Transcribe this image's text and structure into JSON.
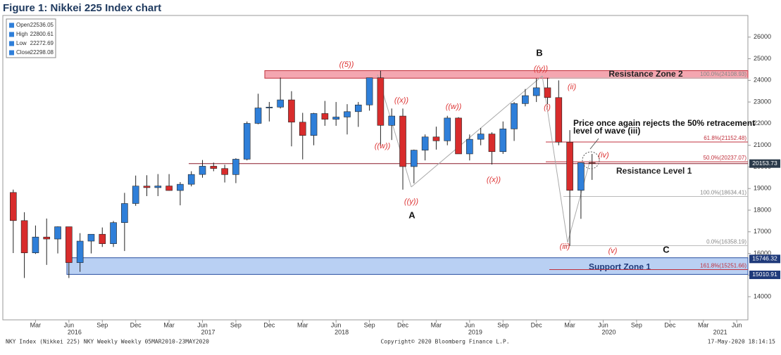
{
  "chart_data": {
    "type": "candlestick",
    "title": "Figure 1: Nikkei 225 Index chart",
    "x": [
      "2016-01",
      "2016-02",
      "2016-03",
      "2016-04",
      "2016-05",
      "2016-06",
      "2016-07",
      "2016-08",
      "2016-09",
      "2016-10",
      "2016-11",
      "2016-12",
      "2017-01",
      "2017-02",
      "2017-03",
      "2017-04",
      "2017-05",
      "2017-06",
      "2017-07",
      "2017-08",
      "2017-09",
      "2017-10",
      "2017-11",
      "2017-12",
      "2018-01",
      "2018-02",
      "2018-03",
      "2018-04",
      "2018-05",
      "2018-06",
      "2018-07",
      "2018-08",
      "2018-09",
      "2018-10",
      "2018-11",
      "2018-12",
      "2019-01",
      "2019-02",
      "2019-03",
      "2019-04",
      "2019-05",
      "2019-06",
      "2019-07",
      "2019-08",
      "2019-09",
      "2019-10",
      "2019-11",
      "2019-12",
      "2020-01",
      "2020-02",
      "2020-03",
      "2020-04",
      "2020-05"
    ],
    "open": [
      18818,
      17518,
      16026,
      16758,
      16666,
      17234,
      15575,
      16569,
      16887,
      16449,
      17425,
      18308,
      19114,
      19041,
      19119,
      18909,
      19197,
      19651,
      20033,
      19925,
      19646,
      20356,
      22012,
      22725,
      22764,
      23098,
      22068,
      21454,
      22468,
      22202,
      22305,
      22554,
      22865,
      24120,
      21920,
      22351,
      20015,
      20773,
      21385,
      21206,
      22259,
      20601,
      21276,
      21522,
      20704,
      21756,
      22927,
      23294,
      23657,
      23205,
      21143,
      18917,
      20194
    ],
    "high": [
      18951,
      17905,
      17291,
      17613,
      17251,
      17235,
      16938,
      16800,
      17200,
      17500,
      18800,
      19600,
      19615,
      19669,
      19668,
      19300,
      19800,
      20318,
      20200,
      20100,
      20400,
      22100,
      23382,
      23000,
      24129,
      23500,
      22500,
      22500,
      23050,
      23000,
      22900,
      23000,
      24120,
      24448,
      22700,
      22698,
      20800,
      21500,
      21860,
      22362,
      22300,
      21500,
      21800,
      21600,
      22100,
      23000,
      23600,
      24092,
      24115,
      24000,
      21700,
      20200,
      20600
    ],
    "low": [
      16017,
      14865,
      15977,
      15471,
      16000,
      14864,
      15150,
      16000,
      16300,
      16300,
      16111,
      18200,
      18650,
      18650,
      18900,
      18224,
      19100,
      19500,
      19800,
      19280,
      19250,
      20300,
      21972,
      22100,
      22700,
      20950,
      20347,
      21000,
      21900,
      21900,
      21500,
      21850,
      22600,
      20971,
      21243,
      18949,
      19241,
      20300,
      20800,
      21000,
      20600,
      20300,
      21000,
      20110,
      20600,
      21200,
      22800,
      23000,
      22900,
      21000,
      16358,
      17600,
      19400
    ],
    "close": [
      17518,
      16026,
      16758,
      16666,
      17234,
      15575,
      16569,
      16887,
      16449,
      17425,
      18308,
      19114,
      19041,
      19119,
      18909,
      19197,
      19651,
      20033,
      19925,
      19646,
      20356,
      22012,
      22725,
      22764,
      23098,
      22068,
      21454,
      22468,
      22202,
      22305,
      22554,
      22865,
      24120,
      21920,
      22351,
      20015,
      20773,
      21385,
      21206,
      22259,
      20601,
      21276,
      21522,
      20704,
      21756,
      22927,
      23294,
      23657,
      23205,
      21143,
      18917,
      20194,
      20153
    ],
    "up_color": "#2f7fd9",
    "down_color": "#d82c2c",
    "xlim": [
      "2015-12",
      "2021-07"
    ],
    "xticks": [
      {
        "value": "2016-03",
        "label": "Mar"
      },
      {
        "value": "2016-06",
        "label": "Jun"
      },
      {
        "value": "2016-09",
        "label": "Sep"
      },
      {
        "value": "2016-12",
        "label": "Dec"
      },
      {
        "value": "2017-03",
        "label": "Mar"
      },
      {
        "value": "2017-06",
        "label": "Jun"
      },
      {
        "value": "2017-09",
        "label": "Sep"
      },
      {
        "value": "2017-12",
        "label": "Dec"
      },
      {
        "value": "2018-03",
        "label": "Mar"
      },
      {
        "value": "2018-06",
        "label": "Jun"
      },
      {
        "value": "2018-09",
        "label": "Sep"
      },
      {
        "value": "2018-12",
        "label": "Dec"
      },
      {
        "value": "2019-03",
        "label": "Mar"
      },
      {
        "value": "2019-06",
        "label": "Jun"
      },
      {
        "value": "2019-09",
        "label": "Sep"
      },
      {
        "value": "2019-12",
        "label": "Dec"
      },
      {
        "value": "2020-03",
        "label": "Mar"
      },
      {
        "value": "2020-06",
        "label": "Jun"
      },
      {
        "value": "2020-09",
        "label": "Sep"
      },
      {
        "value": "2020-12",
        "label": "Dec"
      },
      {
        "value": "2021-03",
        "label": "Mar"
      },
      {
        "value": "2021-06",
        "label": "Jun"
      }
    ],
    "xyears": [
      {
        "value": "2016-06",
        "label": "2016"
      },
      {
        "value": "2017-06",
        "label": "2017"
      },
      {
        "value": "2018-06",
        "label": "2018"
      },
      {
        "value": "2019-06",
        "label": "2019"
      },
      {
        "value": "2020-06",
        "label": "2020"
      },
      {
        "value": "2021-04",
        "label": "2021"
      }
    ],
    "ylim": [
      12930,
      27000
    ],
    "yticks": [
      14000,
      15000,
      16000,
      17000,
      18000,
      19000,
      20000,
      21000,
      22000,
      23000,
      24000,
      25000,
      26000
    ],
    "legend": [
      {
        "label": "Open",
        "value": 22536.05
      },
      {
        "label": "High",
        "value": 22800.61
      },
      {
        "label": "Low",
        "value": 22272.69
      },
      {
        "label": "Close",
        "value": 22298.08
      }
    ],
    "zones": [
      {
        "label": "Resistance Zone 2",
        "from": 24100,
        "to": 24450,
        "color": "#f4a6b0"
      },
      {
        "label": "Support Zone 1",
        "from": 15030,
        "to": 15800,
        "color": "#b9d0f3"
      }
    ],
    "levels": [
      {
        "label": "Resistance Level 1",
        "value": 20150
      }
    ],
    "fib": [
      {
        "label": "100.0%(24108.93)",
        "value": 24108.93
      },
      {
        "label": "61.8%(21152.48)",
        "value": 21152.48
      },
      {
        "label": "50.0%(20237.07)",
        "value": 20237.07
      },
      {
        "label": "100.0%(18634.41)",
        "value": 18634.41
      },
      {
        "label": "0.0%(16358.19)",
        "value": 16358.19
      },
      {
        "label": "161.8%(15251.66)",
        "value": 15251.66
      }
    ],
    "price_tags": [
      {
        "value": 20153.73
      },
      {
        "value": 15746.32
      },
      {
        "value": 15010.91
      }
    ],
    "annotations": [
      "((5))",
      "B",
      "((y))",
      "(ii)",
      "((x))",
      "((w))",
      "(i)",
      "((w))",
      "((y))",
      "A",
      "((x))",
      "(iv)",
      "(iii)",
      "(v)",
      "C",
      "Price once again rejects the 50% retracement",
      "level of wave (iii)"
    ],
    "footer": [
      "NKY Index (Nikkei 225) NKY Weekly  Weekly 05MAR2010-23MAY2020",
      "Copyright© 2020 Bloomberg Finance L.P.",
      "17-May-2020 18:14:15"
    ]
  }
}
